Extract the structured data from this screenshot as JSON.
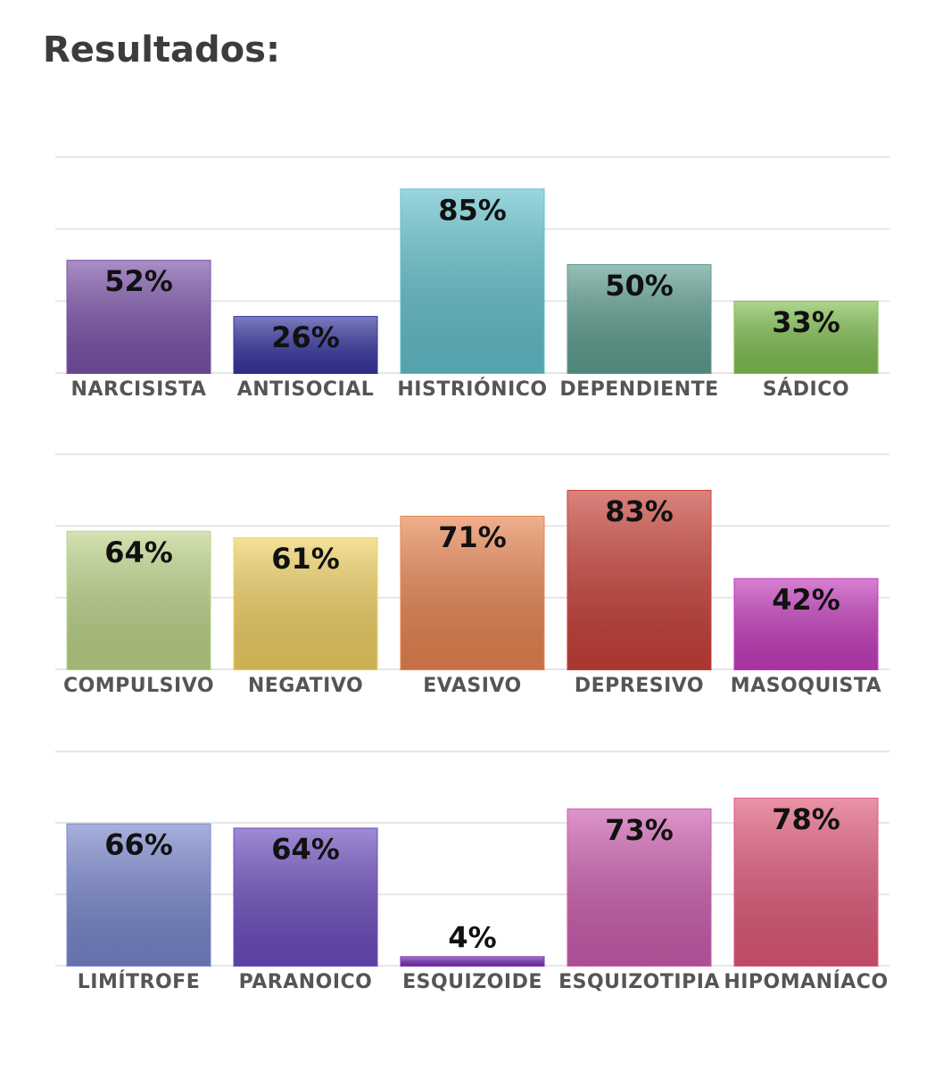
{
  "title": "Resultados:",
  "chart_data": [
    {
      "type": "bar",
      "categories": [
        "NARCISISTA",
        "ANTISOCIAL",
        "HISTRIÓNICO",
        "DEPENDIENTE",
        "SÁDICO"
      ],
      "values": [
        52,
        26,
        85,
        50,
        33
      ],
      "value_labels": [
        "52%",
        "26%",
        "85%",
        "50%",
        "33%"
      ],
      "colors": [
        "#7a52a8",
        "#3535a0",
        "#62c0cc",
        "#5e9e90",
        "#80c050"
      ],
      "ylim": [
        0,
        100
      ],
      "yticks": [
        0,
        33.3,
        66.7,
        100
      ],
      "grid": true
    },
    {
      "type": "bar",
      "categories": [
        "COMPULSIVO",
        "NEGATIVO",
        "EVASIVO",
        "DEPRESIVO",
        "MASOQUISTA"
      ],
      "values": [
        64,
        61,
        71,
        83,
        42
      ],
      "value_labels": [
        "64%",
        "61%",
        "71%",
        "83%",
        "42%"
      ],
      "colors": [
        "#bcd488",
        "#f0d062",
        "#e88450",
        "#c84038",
        "#c43cbc"
      ],
      "ylim": [
        0,
        100
      ],
      "yticks": [
        0,
        33.3,
        66.7,
        100
      ],
      "grid": true
    },
    {
      "type": "bar",
      "categories": [
        "LIMÍTROFE",
        "PARANOICO",
        "ESQUIZOIDE",
        "ESQUIZOTIPIA",
        "HIPOMANÍACO"
      ],
      "values": [
        66,
        64,
        4,
        73,
        78
      ],
      "value_labels": [
        "66%",
        "64%",
        "4%",
        "73%",
        "78%"
      ],
      "colors": [
        "#7886cc",
        "#6c4cbe",
        "#7a30b8",
        "#cc5cae",
        "#e05878"
      ],
      "ylim": [
        0,
        100
      ],
      "yticks": [
        0,
        33.3,
        66.7,
        100
      ],
      "grid": true
    }
  ]
}
